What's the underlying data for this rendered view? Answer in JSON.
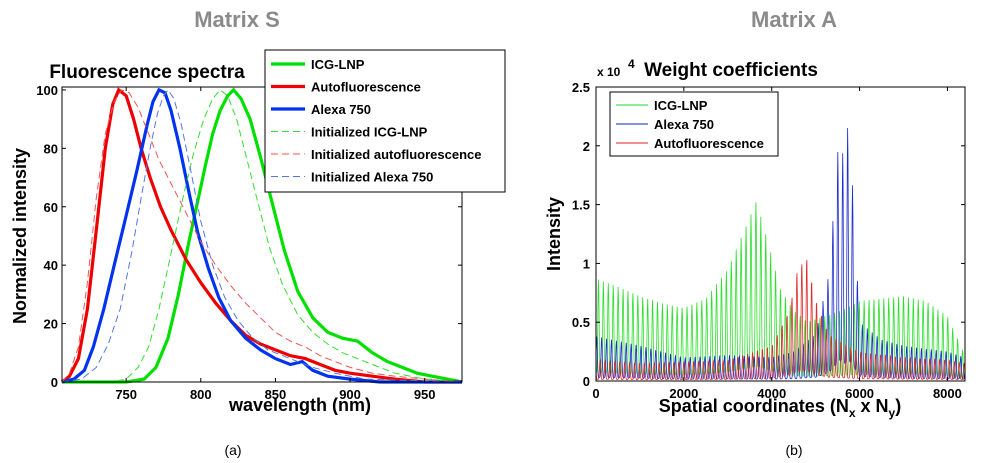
{
  "figure": {
    "left_heading": "Matrix S",
    "right_heading": "Matrix A",
    "left_caption": "(a)",
    "right_caption": "(b)"
  },
  "chart_data": [
    {
      "type": "line",
      "title": "Fluorescence spectra",
      "xlabel": "wavelength (nm)",
      "ylabel": "Normalized intensity",
      "xlim": [
        707,
        975
      ],
      "ylim": [
        0,
        101
      ],
      "xticks": [
        750,
        800,
        850,
        900,
        950
      ],
      "yticks": [
        0,
        20,
        40,
        60,
        80,
        100
      ],
      "grid": false,
      "legend_position": "top-right",
      "series": [
        {
          "name": "ICG-LNP",
          "color": "#00e000",
          "dash": "solid",
          "bold": true,
          "points": [
            [
              707,
              0
            ],
            [
              750,
              0
            ],
            [
              762,
              1
            ],
            [
              770,
              5
            ],
            [
              778,
              15
            ],
            [
              785,
              30
            ],
            [
              792,
              48
            ],
            [
              798,
              62
            ],
            [
              803,
              74
            ],
            [
              808,
              85
            ],
            [
              813,
              93
            ],
            [
              818,
              98
            ],
            [
              822,
              100
            ],
            [
              827,
              97
            ],
            [
              833,
              90
            ],
            [
              840,
              77
            ],
            [
              848,
              61
            ],
            [
              856,
              45
            ],
            [
              865,
              31
            ],
            [
              875,
              22
            ],
            [
              885,
              17
            ],
            [
              895,
              15
            ],
            [
              905,
              14
            ],
            [
              915,
              10
            ],
            [
              925,
              7
            ],
            [
              935,
              5
            ],
            [
              945,
              3
            ],
            [
              955,
              2
            ],
            [
              965,
              1
            ],
            [
              975,
              0
            ]
          ]
        },
        {
          "name": "Autofluorescence",
          "color": "#ee0000",
          "dash": "solid",
          "bold": true,
          "points": [
            [
              707,
              0
            ],
            [
              712,
              2
            ],
            [
              718,
              8
            ],
            [
              724,
              25
            ],
            [
              730,
              52
            ],
            [
              736,
              80
            ],
            [
              741,
              95
            ],
            [
              745,
              100
            ],
            [
              750,
              98
            ],
            [
              755,
              90
            ],
            [
              760,
              80
            ],
            [
              766,
              70
            ],
            [
              773,
              60
            ],
            [
              780,
              52
            ],
            [
              790,
              42
            ],
            [
              800,
              34
            ],
            [
              810,
              27
            ],
            [
              820,
              21
            ],
            [
              830,
              16
            ],
            [
              840,
              13
            ],
            [
              850,
              11
            ],
            [
              860,
              9
            ],
            [
              870,
              8
            ],
            [
              880,
              6
            ],
            [
              890,
              4
            ],
            [
              900,
              3
            ],
            [
              915,
              2
            ],
            [
              930,
              1
            ],
            [
              950,
              0
            ],
            [
              975,
              0
            ]
          ]
        },
        {
          "name": "Alexa 750",
          "color": "#0033ee",
          "dash": "solid",
          "bold": true,
          "points": [
            [
              707,
              0
            ],
            [
              715,
              1
            ],
            [
              722,
              4
            ],
            [
              728,
              12
            ],
            [
              735,
              25
            ],
            [
              742,
              40
            ],
            [
              750,
              57
            ],
            [
              757,
              72
            ],
            [
              764,
              88
            ],
            [
              768,
              96
            ],
            [
              772,
              100
            ],
            [
              776,
              99
            ],
            [
              780,
              93
            ],
            [
              786,
              80
            ],
            [
              792,
              65
            ],
            [
              798,
              51
            ],
            [
              805,
              39
            ],
            [
              812,
              29
            ],
            [
              820,
              21
            ],
            [
              830,
              15
            ],
            [
              840,
              11
            ],
            [
              850,
              8
            ],
            [
              860,
              6
            ],
            [
              868,
              7
            ],
            [
              875,
              4
            ],
            [
              885,
              2
            ],
            [
              900,
              1
            ],
            [
              920,
              0
            ],
            [
              975,
              0
            ]
          ]
        },
        {
          "name": "Initialized ICG-LNP",
          "color": "#33dd33",
          "dash": "dashed",
          "bold": false,
          "points": [
            [
              707,
              0
            ],
            [
              740,
              0
            ],
            [
              750,
              1
            ],
            [
              758,
              5
            ],
            [
              765,
              12
            ],
            [
              772,
              25
            ],
            [
              780,
              44
            ],
            [
              788,
              63
            ],
            [
              795,
              78
            ],
            [
              802,
              90
            ],
            [
              808,
              97
            ],
            [
              813,
              100
            ],
            [
              818,
              98
            ],
            [
              824,
              90
            ],
            [
              830,
              78
            ],
            [
              838,
              62
            ],
            [
              846,
              46
            ],
            [
              855,
              33
            ],
            [
              865,
              23
            ],
            [
              875,
              17
            ],
            [
              885,
              13
            ],
            [
              895,
              10
            ],
            [
              905,
              8
            ],
            [
              915,
              6
            ],
            [
              930,
              3
            ],
            [
              950,
              1
            ],
            [
              975,
              0
            ]
          ]
        },
        {
          "name": "Initialized autofluorescence",
          "color": "#ee5555",
          "dash": "dashed",
          "bold": false,
          "points": [
            [
              707,
              0
            ],
            [
              712,
              3
            ],
            [
              718,
              12
            ],
            [
              724,
              34
            ],
            [
              730,
              63
            ],
            [
              736,
              85
            ],
            [
              742,
              96
            ],
            [
              747,
              100
            ],
            [
              752,
              99
            ],
            [
              758,
              94
            ],
            [
              765,
              85
            ],
            [
              772,
              76
            ],
            [
              780,
              68
            ],
            [
              790,
              58
            ],
            [
              800,
              48
            ],
            [
              810,
              40
            ],
            [
              820,
              33
            ],
            [
              830,
              27
            ],
            [
              840,
              22
            ],
            [
              850,
              17
            ],
            [
              860,
              14
            ],
            [
              870,
              12
            ],
            [
              880,
              9
            ],
            [
              890,
              7
            ],
            [
              900,
              5
            ],
            [
              915,
              3
            ],
            [
              930,
              2
            ],
            [
              950,
              1
            ],
            [
              975,
              0
            ]
          ]
        },
        {
          "name": "Initialized Alexa 750",
          "color": "#5577dd",
          "dash": "dashed",
          "bold": false,
          "points": [
            [
              707,
              0
            ],
            [
              720,
              1
            ],
            [
              730,
              5
            ],
            [
              738,
              13
            ],
            [
              746,
              25
            ],
            [
              754,
              45
            ],
            [
              760,
              63
            ],
            [
              766,
              80
            ],
            [
              771,
              92
            ],
            [
              775,
              98
            ],
            [
              778,
              100
            ],
            [
              782,
              97
            ],
            [
              787,
              88
            ],
            [
              793,
              73
            ],
            [
              800,
              55
            ],
            [
              808,
              40
            ],
            [
              816,
              29
            ],
            [
              825,
              21
            ],
            [
              835,
              15
            ],
            [
              845,
              11
            ],
            [
              855,
              9
            ],
            [
              865,
              7
            ],
            [
              875,
              5
            ],
            [
              890,
              3
            ],
            [
              910,
              1
            ],
            [
              975,
              0
            ]
          ]
        }
      ]
    },
    {
      "type": "line",
      "title": "Weight coefficients",
      "xlabel": "Spatial coordinates (Nx x Ny)",
      "xlabel_parts": {
        "main": "Spatial coordinates (N",
        "sub1": "x",
        "mid": " x N",
        "sub2": "y",
        "end": ")"
      },
      "ylabel": "Intensity",
      "y_multiplier_base": "x 10",
      "y_multiplier_exp": "4",
      "xlim": [
        0,
        8400
      ],
      "ylim": [
        0,
        2.5
      ],
      "xticks": [
        0,
        2000,
        4000,
        6000,
        8000
      ],
      "yticks": [
        0,
        0.5,
        1,
        1.5,
        2,
        2.5
      ],
      "ytick_labels": [
        "0",
        "0.5",
        "1",
        "1.5",
        "2",
        "2.5"
      ],
      "grid": false,
      "legend_position": "top-left",
      "series": [
        {
          "name": "ICG-LNP",
          "color": "#22dd22",
          "peak_envelope": [
            [
              0,
              0.87
            ],
            [
              500,
              0.8
            ],
            [
              1000,
              0.72
            ],
            [
              1500,
              0.66
            ],
            [
              2000,
              0.62
            ],
            [
              2500,
              0.7
            ],
            [
              3000,
              0.95
            ],
            [
              3400,
              1.3
            ],
            [
              3650,
              1.53
            ],
            [
              3900,
              1.2
            ],
            [
              4200,
              0.78
            ],
            [
              4500,
              0.6
            ],
            [
              4800,
              0.5
            ],
            [
              5200,
              0.55
            ],
            [
              5600,
              0.6
            ],
            [
              6000,
              0.68
            ],
            [
              6500,
              0.7
            ],
            [
              7000,
              0.72
            ],
            [
              7500,
              0.68
            ],
            [
              8000,
              0.55
            ],
            [
              8400,
              0.22
            ]
          ]
        },
        {
          "name": "Alexa 750",
          "color": "#1122cc",
          "peak_envelope": [
            [
              0,
              0.38
            ],
            [
              1000,
              0.3
            ],
            [
              2000,
              0.2
            ],
            [
              3000,
              0.22
            ],
            [
              4000,
              0.2
            ],
            [
              4500,
              0.25
            ],
            [
              5000,
              0.4
            ],
            [
              5300,
              0.9
            ],
            [
              5450,
              1.65
            ],
            [
              5550,
              2.2
            ],
            [
              5650,
              1.8
            ],
            [
              5750,
              2.25
            ],
            [
              5850,
              1.6
            ],
            [
              6000,
              0.5
            ],
            [
              6500,
              0.35
            ],
            [
              7000,
              0.3
            ],
            [
              8000,
              0.25
            ],
            [
              8400,
              0.2
            ]
          ]
        },
        {
          "name": "Autofluorescence",
          "color": "#dd2222",
          "peak_envelope": [
            [
              0,
              0.18
            ],
            [
              1000,
              0.15
            ],
            [
              2000,
              0.16
            ],
            [
              3000,
              0.18
            ],
            [
              4000,
              0.3
            ],
            [
              4400,
              0.6
            ],
            [
              4600,
              0.98
            ],
            [
              4800,
              1.05
            ],
            [
              5000,
              0.7
            ],
            [
              5300,
              0.4
            ],
            [
              6000,
              0.25
            ],
            [
              7000,
              0.2
            ],
            [
              8000,
              0.18
            ],
            [
              8400,
              0.15
            ]
          ]
        }
      ]
    }
  ]
}
